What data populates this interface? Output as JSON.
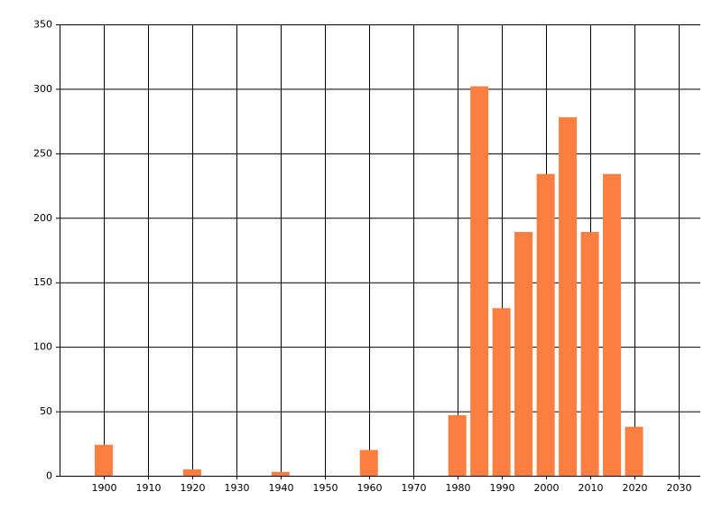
{
  "chart_data": {
    "type": "bar",
    "x": [
      1900,
      1920,
      1940,
      1960,
      1980,
      1985,
      1990,
      1995,
      2000,
      2005,
      2010,
      2015,
      2020
    ],
    "values": [
      24,
      5,
      3,
      20,
      47,
      302,
      130,
      189,
      234,
      278,
      189,
      234,
      38
    ],
    "color": "#ff7f40",
    "xlim": [
      1890,
      2035
    ],
    "xticks": [
      1900,
      1910,
      1920,
      1930,
      1940,
      1950,
      1960,
      1970,
      1980,
      1990,
      2000,
      2010,
      2020,
      2030
    ],
    "ylim": [
      0,
      350
    ],
    "yticks": [
      0,
      50,
      100,
      150,
      200,
      250,
      300,
      350
    ],
    "grid": true
  }
}
